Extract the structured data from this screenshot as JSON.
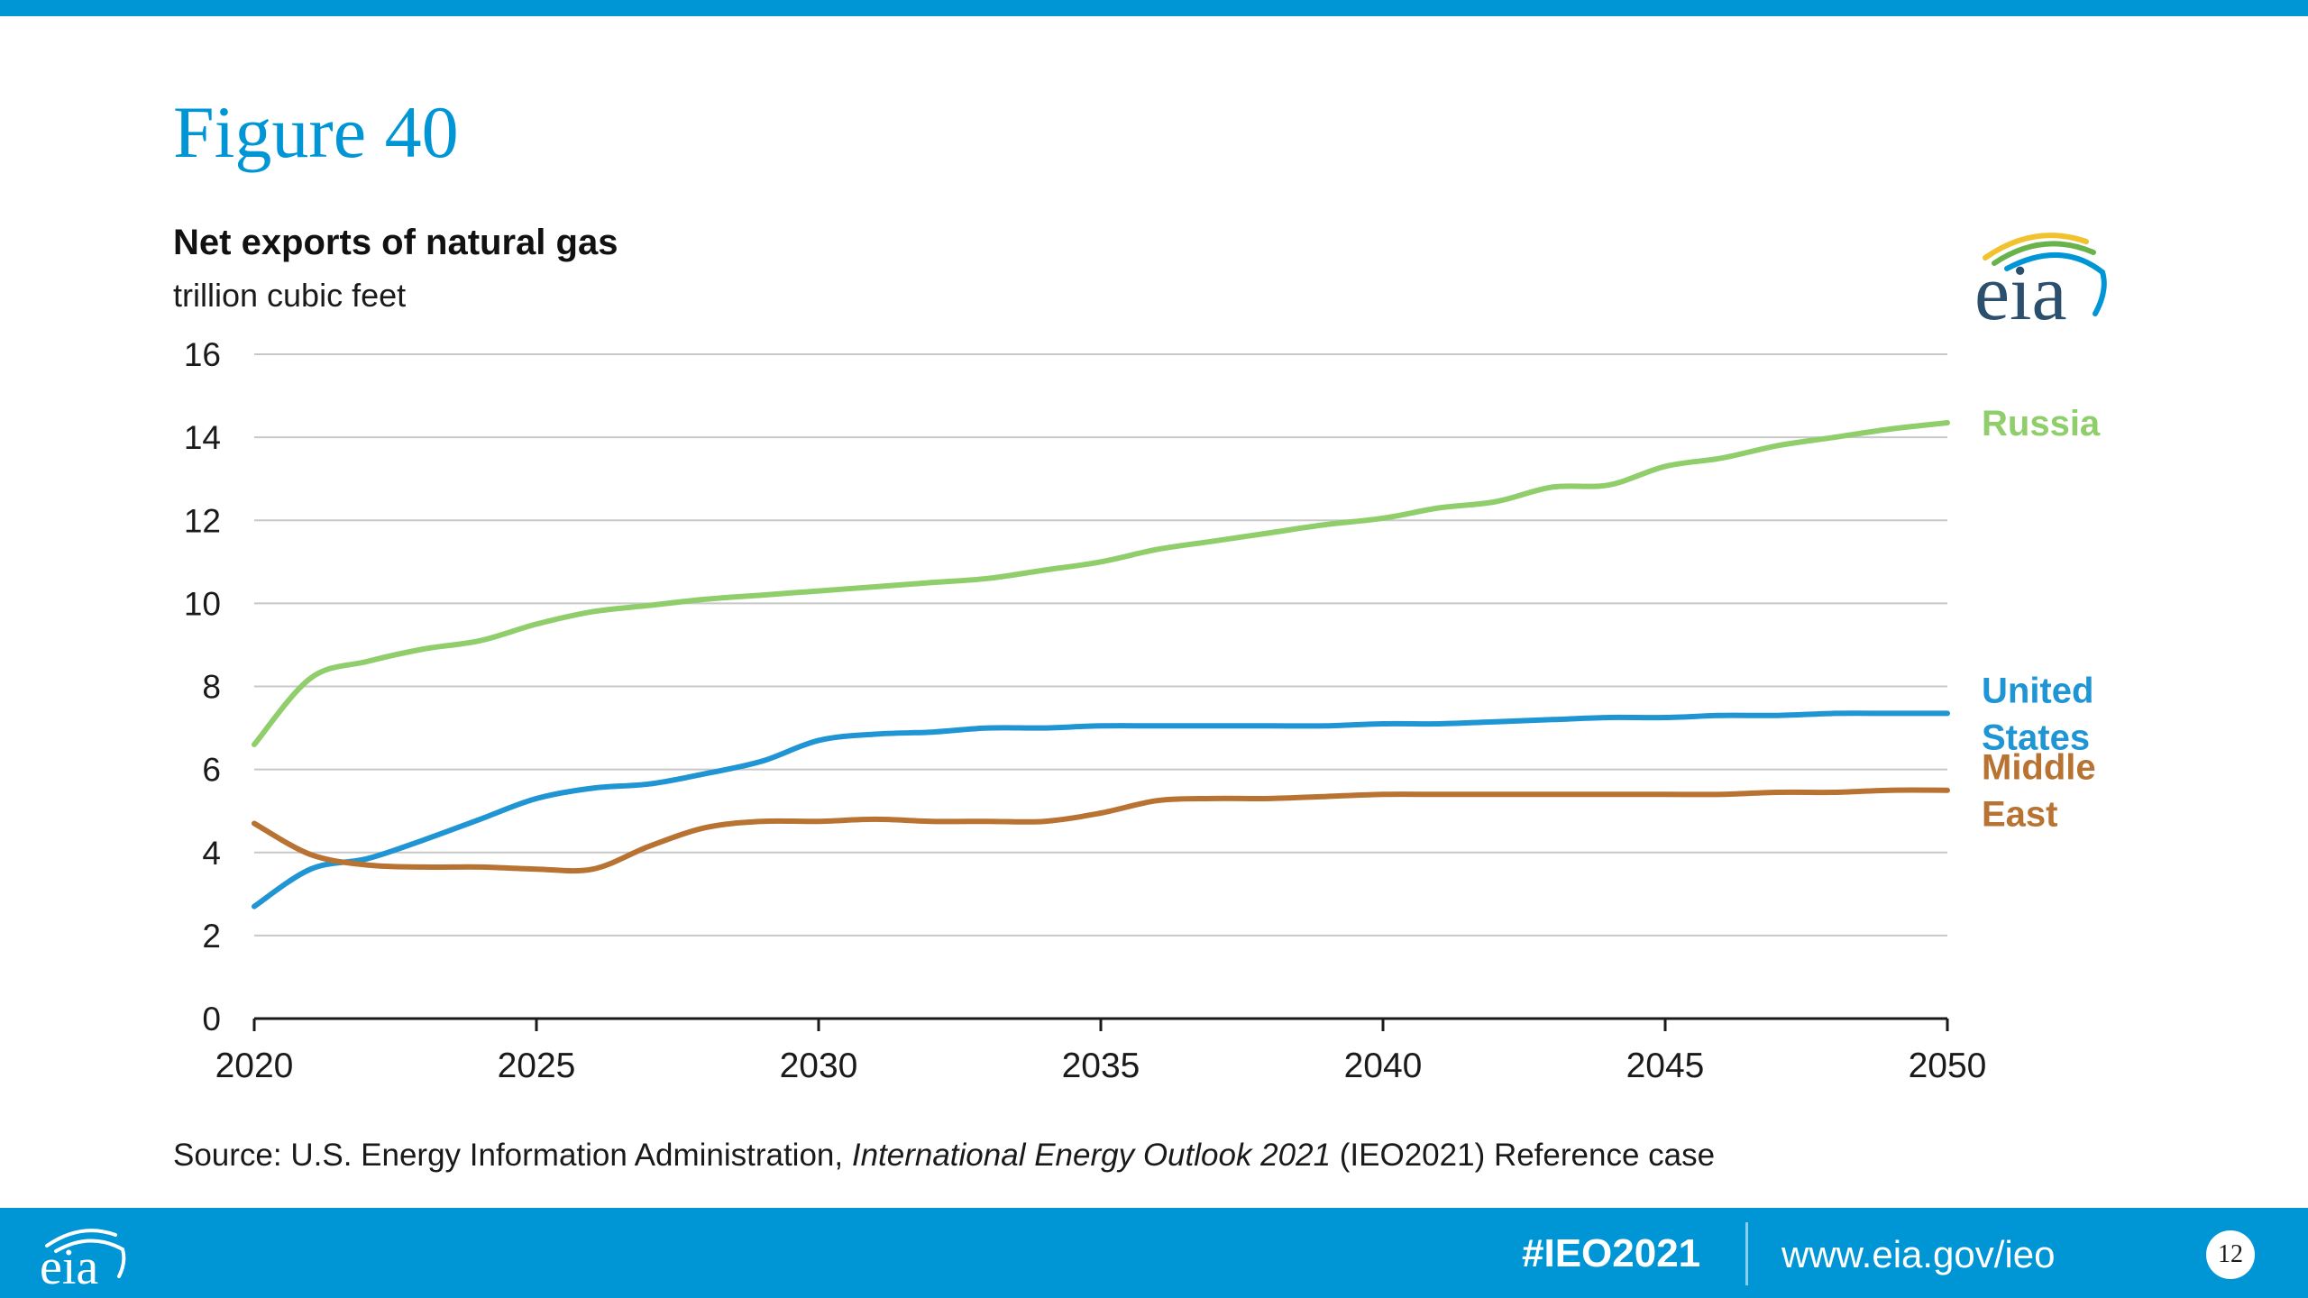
{
  "slide": {
    "figure_label": "Figure 40",
    "source_prefix": "Source:  U.S. Energy Information Administration, ",
    "source_italic": "International Energy Outlook 2021",
    "source_suffix": " (IEO2021) Reference case",
    "logo_text": "eia"
  },
  "footer": {
    "hashtag": "#IEO2021",
    "url": "www.eia.gov/ieo",
    "page_number": "12",
    "logo_text": "eia"
  },
  "colors": {
    "accent": "#0096d6",
    "russia": "#8fce6b",
    "united_states": "#1f95d3",
    "middle_east": "#b87332",
    "gridline": "#c8c8c8"
  },
  "chart_data": {
    "type": "line",
    "title": "Net exports of natural gas",
    "subtitle": "trillion cubic feet",
    "xlim": [
      2020,
      2050
    ],
    "ylim": [
      0,
      16
    ],
    "x_ticks": [
      "2020",
      "2025",
      "2030",
      "2035",
      "2040",
      "2045",
      "2050"
    ],
    "y_ticks": [
      "0",
      "2",
      "4",
      "6",
      "8",
      "10",
      "12",
      "14",
      "16"
    ],
    "grid": true,
    "legend": "inline labels at line ends",
    "x": [
      2020,
      2021,
      2022,
      2023,
      2024,
      2025,
      2026,
      2027,
      2028,
      2029,
      2030,
      2031,
      2032,
      2033,
      2034,
      2035,
      2036,
      2037,
      2038,
      2039,
      2040,
      2041,
      2042,
      2043,
      2044,
      2045,
      2046,
      2047,
      2048,
      2049,
      2050
    ],
    "series": [
      {
        "name": "Russia",
        "label_lines": [
          "Russia"
        ],
        "color_key": "russia",
        "values": [
          6.6,
          8.2,
          8.6,
          8.9,
          9.1,
          9.5,
          9.8,
          9.95,
          10.1,
          10.2,
          10.3,
          10.4,
          10.5,
          10.6,
          10.8,
          11.0,
          11.3,
          11.5,
          11.7,
          11.9,
          12.05,
          12.3,
          12.45,
          12.8,
          12.85,
          13.3,
          13.5,
          13.8,
          14.0,
          14.2,
          14.35
        ]
      },
      {
        "name": "United States",
        "label_lines": [
          "United",
          "States"
        ],
        "color_key": "united_states",
        "values": [
          2.7,
          3.6,
          3.85,
          4.3,
          4.8,
          5.3,
          5.55,
          5.65,
          5.9,
          6.2,
          6.7,
          6.85,
          6.9,
          7.0,
          7.0,
          7.05,
          7.05,
          7.05,
          7.05,
          7.05,
          7.1,
          7.1,
          7.15,
          7.2,
          7.25,
          7.25,
          7.3,
          7.3,
          7.35,
          7.35,
          7.35
        ]
      },
      {
        "name": "Middle East",
        "label_lines": [
          "Middle",
          "East"
        ],
        "color_key": "middle_east",
        "values": [
          4.7,
          3.95,
          3.7,
          3.65,
          3.65,
          3.6,
          3.6,
          4.15,
          4.6,
          4.75,
          4.75,
          4.8,
          4.75,
          4.75,
          4.75,
          4.95,
          5.25,
          5.3,
          5.3,
          5.35,
          5.4,
          5.4,
          5.4,
          5.4,
          5.4,
          5.4,
          5.4,
          5.45,
          5.45,
          5.5,
          5.5
        ]
      }
    ]
  }
}
